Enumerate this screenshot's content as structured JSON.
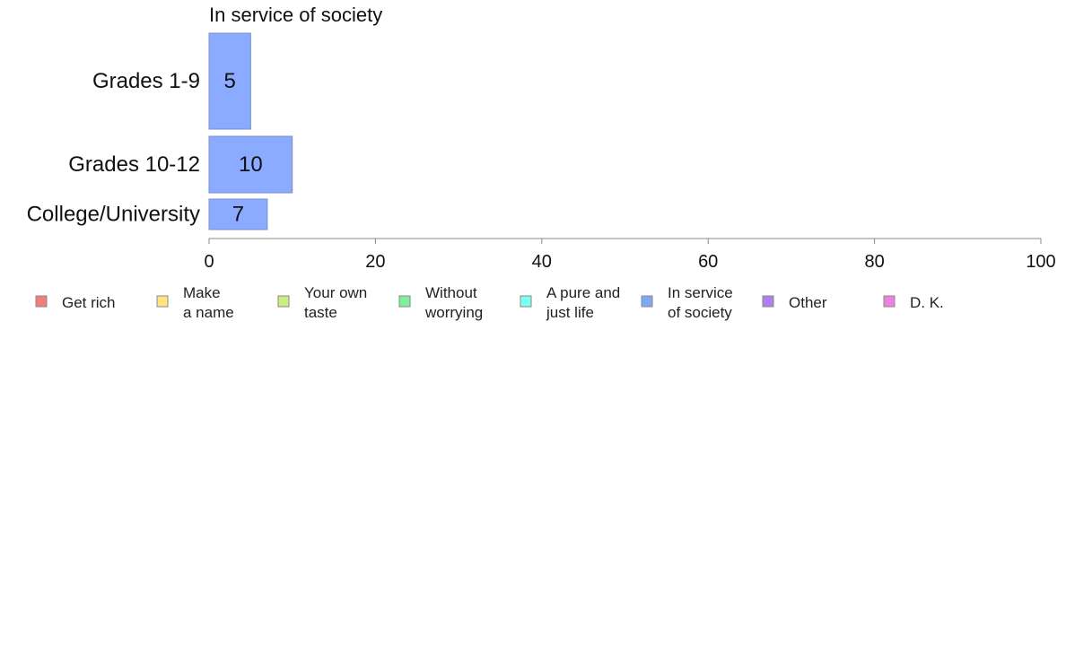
{
  "chart_data": {
    "type": "bar",
    "orientation": "horizontal",
    "title": "In service of society",
    "categories": [
      "Grades 1-9",
      "Grades 10-12",
      "College/University"
    ],
    "series": [
      {
        "name": "In service of society",
        "values": [
          5,
          10,
          7
        ],
        "color": "#8aabff"
      }
    ],
    "xlim": [
      0,
      100
    ],
    "xticks": [
      0,
      20,
      40,
      60,
      80,
      100
    ],
    "grid": false,
    "legend_position": "bottom",
    "legend": [
      {
        "label_lines": [
          "Get rich"
        ],
        "color": "#f08080"
      },
      {
        "label_lines": [
          "Make",
          "a name"
        ],
        "color": "#ffe680"
      },
      {
        "label_lines": [
          "Your own",
          "taste"
        ],
        "color": "#c8f080"
      },
      {
        "label_lines": [
          "Without",
          "worrying"
        ],
        "color": "#80f0a0"
      },
      {
        "label_lines": [
          "A pure and",
          "just life"
        ],
        "color": "#80fff0"
      },
      {
        "label_lines": [
          "In service",
          "of society"
        ],
        "color": "#80a8f0"
      },
      {
        "label_lines": [
          "Other"
        ],
        "color": "#b080f0"
      },
      {
        "label_lines": [
          "D. K."
        ],
        "color": "#f080e0"
      }
    ]
  }
}
